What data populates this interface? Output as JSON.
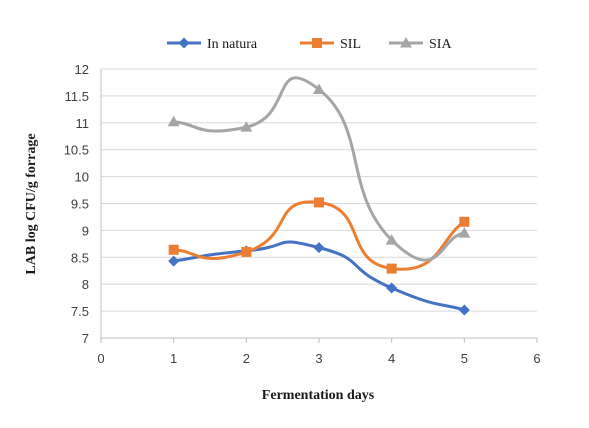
{
  "chart_data": {
    "type": "line",
    "smooth": true,
    "xlabel": "Fermentation days",
    "ylabel": "LAB log CFU/g forrage",
    "xlim": [
      0,
      6
    ],
    "ylim": [
      7,
      12
    ],
    "xticks": [
      "0",
      "1",
      "2",
      "3",
      "4",
      "5",
      "6"
    ],
    "yticks": [
      "7",
      "7.5",
      "8",
      "8.5",
      "9",
      "9.5",
      "10",
      "10.5",
      "11",
      "11.5",
      "12"
    ],
    "grid": "horizontal",
    "legend_position": "top",
    "series": [
      {
        "name": "In natura",
        "color": "#4472C4",
        "marker": "diamond",
        "x": [
          1,
          2,
          3,
          4,
          5
        ],
        "y": [
          8.43,
          8.62,
          8.68,
          7.93,
          7.52
        ]
      },
      {
        "name": "SIL",
        "color": "#ED7D31",
        "marker": "square",
        "x": [
          1,
          2,
          3,
          4,
          5
        ],
        "y": [
          8.64,
          8.6,
          9.52,
          8.29,
          9.16
        ]
      },
      {
        "name": "SIA",
        "color": "#A5A5A5",
        "marker": "triangle",
        "x": [
          1,
          2,
          3,
          4,
          5
        ],
        "y": [
          11.02,
          10.92,
          11.62,
          8.82,
          8.95
        ]
      }
    ]
  }
}
